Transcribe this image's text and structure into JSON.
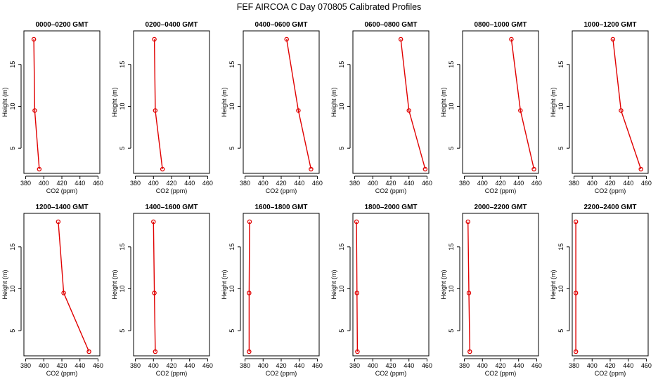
{
  "title": "FEF AIRCOA C  Day 070805  Calibrated Profiles",
  "colors": {
    "series": "#e00000",
    "axis": "#000000",
    "background": "#ffffff"
  },
  "chart_data": [
    {
      "type": "line",
      "title": "0000–0200 GMT",
      "xlabel": "CO2 (ppm)",
      "ylabel": "Height (m)",
      "xlim": [
        378,
        462
      ],
      "ylim": [
        2,
        19
      ],
      "xticks": [
        380,
        400,
        420,
        440,
        460
      ],
      "yticks": [
        5,
        10,
        15
      ],
      "x": [
        389,
        390,
        395
      ],
      "y": [
        18,
        9.5,
        2.5
      ],
      "grid": false
    },
    {
      "type": "line",
      "title": "0200–0400 GMT",
      "xlabel": "CO2 (ppm)",
      "ylabel": "Height (m)",
      "xlim": [
        378,
        462
      ],
      "ylim": [
        2,
        19
      ],
      "xticks": [
        380,
        400,
        420,
        440,
        460
      ],
      "yticks": [
        5,
        10,
        15
      ],
      "x": [
        401,
        402,
        410
      ],
      "y": [
        18,
        9.5,
        2.5
      ],
      "grid": false
    },
    {
      "type": "line",
      "title": "0400–0600 GMT",
      "xlabel": "CO2 (ppm)",
      "ylabel": "Height (m)",
      "xlim": [
        378,
        462
      ],
      "ylim": [
        2,
        19
      ],
      "xticks": [
        380,
        400,
        420,
        440,
        460
      ],
      "yticks": [
        5,
        10,
        15
      ],
      "x": [
        426,
        439,
        453
      ],
      "y": [
        18,
        9.5,
        2.5
      ],
      "grid": false
    },
    {
      "type": "line",
      "title": "0600–0800 GMT",
      "xlabel": "CO2 (ppm)",
      "ylabel": "Height (m)",
      "xlim": [
        378,
        462
      ],
      "ylim": [
        2,
        19
      ],
      "xticks": [
        380,
        400,
        420,
        440,
        460
      ],
      "yticks": [
        5,
        10,
        15
      ],
      "x": [
        431,
        440,
        458
      ],
      "y": [
        18,
        9.5,
        2.5
      ],
      "grid": false
    },
    {
      "type": "line",
      "title": "0800–1000 GMT",
      "xlabel": "CO2 (ppm)",
      "ylabel": "Height (m)",
      "xlim": [
        378,
        462
      ],
      "ylim": [
        2,
        19
      ],
      "xticks": [
        380,
        400,
        420,
        440,
        460
      ],
      "yticks": [
        5,
        10,
        15
      ],
      "x": [
        432,
        442,
        457
      ],
      "y": [
        18,
        9.5,
        2.5
      ],
      "grid": false
    },
    {
      "type": "line",
      "title": "1000–1200 GMT",
      "xlabel": "CO2 (ppm)",
      "ylabel": "Height (m)",
      "xlim": [
        378,
        462
      ],
      "ylim": [
        2,
        19
      ],
      "xticks": [
        380,
        400,
        420,
        440,
        460
      ],
      "yticks": [
        5,
        10,
        15
      ],
      "x": [
        423,
        432,
        454
      ],
      "y": [
        18,
        9.5,
        2.5
      ],
      "grid": false
    },
    {
      "type": "line",
      "title": "1200–1400 GMT",
      "xlabel": "CO2 (ppm)",
      "ylabel": "Height (m)",
      "xlim": [
        378,
        462
      ],
      "ylim": [
        2,
        19
      ],
      "xticks": [
        380,
        400,
        420,
        440,
        460
      ],
      "yticks": [
        5,
        10,
        15
      ],
      "x": [
        416,
        422,
        450
      ],
      "y": [
        18,
        9.5,
        2.5
      ],
      "grid": false
    },
    {
      "type": "line",
      "title": "1400–1600 GMT",
      "xlabel": "CO2 (ppm)",
      "ylabel": "Height (m)",
      "xlim": [
        378,
        462
      ],
      "ylim": [
        2,
        19
      ],
      "xticks": [
        380,
        400,
        420,
        440,
        460
      ],
      "yticks": [
        5,
        10,
        15
      ],
      "x": [
        400,
        401,
        402
      ],
      "y": [
        18,
        9.5,
        2.5
      ],
      "grid": false
    },
    {
      "type": "line",
      "title": "1600–1800 GMT",
      "xlabel": "CO2 (ppm)",
      "ylabel": "Height (m)",
      "xlim": [
        378,
        462
      ],
      "ylim": [
        2,
        19
      ],
      "xticks": [
        380,
        400,
        420,
        440,
        460
      ],
      "yticks": [
        5,
        10,
        15
      ],
      "x": [
        385,
        384.5,
        384.5
      ],
      "y": [
        18,
        9.5,
        2.5
      ],
      "grid": false
    },
    {
      "type": "line",
      "title": "1800–2000 GMT",
      "xlabel": "CO2 (ppm)",
      "ylabel": "Height (m)",
      "xlim": [
        378,
        462
      ],
      "ylim": [
        2,
        19
      ],
      "xticks": [
        380,
        400,
        420,
        440,
        460
      ],
      "yticks": [
        5,
        10,
        15
      ],
      "x": [
        382,
        382.5,
        383
      ],
      "y": [
        18,
        9.5,
        2.5
      ],
      "grid": false
    },
    {
      "type": "line",
      "title": "2000–2200 GMT",
      "xlabel": "CO2 (ppm)",
      "ylabel": "Height (m)",
      "xlim": [
        378,
        462
      ],
      "ylim": [
        2,
        19
      ],
      "xticks": [
        380,
        400,
        420,
        440,
        460
      ],
      "yticks": [
        5,
        10,
        15
      ],
      "x": [
        384,
        385,
        386
      ],
      "y": [
        18,
        9.5,
        2.5
      ],
      "grid": false
    },
    {
      "type": "line",
      "title": "2200–2400 GMT",
      "xlabel": "CO2 (ppm)",
      "ylabel": "Height (m)",
      "xlim": [
        378,
        462
      ],
      "ylim": [
        2,
        19
      ],
      "xticks": [
        380,
        400,
        420,
        440,
        460
      ],
      "yticks": [
        5,
        10,
        15
      ],
      "x": [
        382,
        382,
        382
      ],
      "y": [
        18,
        9.5,
        2.5
      ],
      "grid": false
    }
  ]
}
